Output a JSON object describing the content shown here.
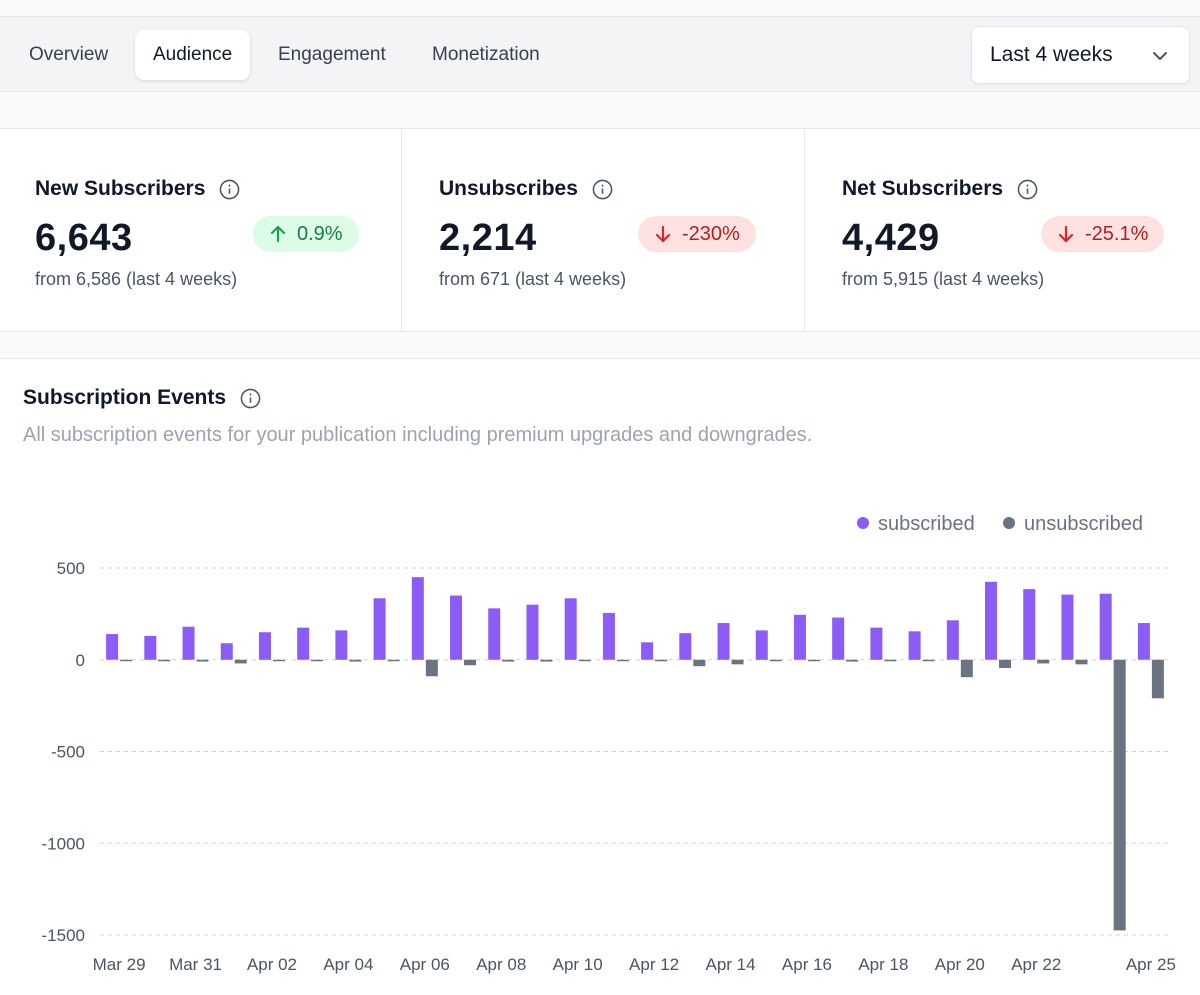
{
  "tabs": [
    {
      "label": "Overview",
      "active": false
    },
    {
      "label": "Audience",
      "active": true
    },
    {
      "label": "Engagement",
      "active": false
    },
    {
      "label": "Monetization",
      "active": false
    }
  ],
  "date_range": {
    "selected": "Last 4 weeks"
  },
  "stats": [
    {
      "title": "New Subscribers",
      "value": "6,643",
      "change": "0.9%",
      "direction": "up",
      "sub": "from 6,586 (last 4 weeks)"
    },
    {
      "title": "Unsubscribes",
      "value": "2,214",
      "change": "-230%",
      "direction": "down",
      "sub": "from 671 (last 4 weeks)"
    },
    {
      "title": "Net Subscribers",
      "value": "4,429",
      "change": "-25.1%",
      "direction": "down",
      "sub": "from 5,915 (last 4 weeks)"
    }
  ],
  "chart": {
    "title": "Subscription Events",
    "subtitle": "All subscription events for your publication including premium upgrades and downgrades."
  },
  "colors": {
    "subscribed": "#8b5cf6",
    "unsubscribed": "#6b7280",
    "up": "#15803d",
    "down": "#b91c1c"
  },
  "chart_data": {
    "type": "bar",
    "categories": [
      "Mar 29",
      "Mar 30",
      "Mar 31",
      "Apr 01",
      "Apr 02",
      "Apr 03",
      "Apr 04",
      "Apr 05",
      "Apr 06",
      "Apr 07",
      "Apr 08",
      "Apr 09",
      "Apr 10",
      "Apr 11",
      "Apr 12",
      "Apr 13",
      "Apr 14",
      "Apr 15",
      "Apr 16",
      "Apr 17",
      "Apr 18",
      "Apr 19",
      "Apr 20",
      "Apr 21",
      "Apr 22",
      "Apr 23",
      "Apr 24",
      "Apr 25"
    ],
    "tick_labels": [
      "Mar 29",
      "",
      "Mar 31",
      "",
      "Apr 02",
      "",
      "Apr 04",
      "",
      "Apr 06",
      "",
      "Apr 08",
      "",
      "Apr 10",
      "",
      "Apr 12",
      "",
      "Apr 14",
      "",
      "Apr 16",
      "",
      "Apr 18",
      "",
      "Apr 20",
      "",
      "Apr 22",
      "",
      "",
      "Apr 25"
    ],
    "series": [
      {
        "name": "subscribed",
        "values": [
          140,
          130,
          180,
          90,
          150,
          175,
          160,
          335,
          450,
          350,
          280,
          300,
          335,
          255,
          95,
          145,
          200,
          160,
          245,
          230,
          175,
          155,
          215,
          425,
          385,
          355,
          360,
          200
        ]
      },
      {
        "name": "unsubscribed",
        "values": [
          -5,
          -5,
          -10,
          -20,
          -5,
          -5,
          -10,
          -5,
          -90,
          -30,
          -10,
          -10,
          -5,
          -5,
          -5,
          -35,
          -25,
          -5,
          -5,
          -10,
          -5,
          -5,
          -95,
          -45,
          -20,
          -25,
          -1475,
          -210
        ]
      }
    ],
    "ylim": [
      -1500,
      500
    ],
    "yticks": [
      500,
      0,
      -500,
      -1000,
      -1500
    ],
    "grid": true,
    "legend": "top-right"
  }
}
